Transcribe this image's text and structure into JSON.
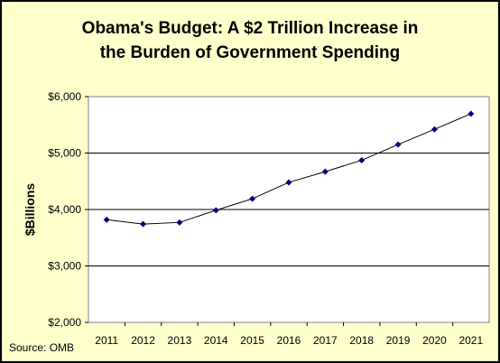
{
  "chart_data": {
    "type": "line",
    "title_lines": [
      "Obama's Budget: A $2 Trillion Increase in",
      "the Burden of Government Spending"
    ],
    "ylabel": "$Billions",
    "xlabel": "",
    "source": "Source: OMB",
    "categories": [
      "2011",
      "2012",
      "2013",
      "2014",
      "2015",
      "2016",
      "2017",
      "2018",
      "2019",
      "2020",
      "2021"
    ],
    "series": [
      {
        "values": [
          3819,
          3743,
          3771,
          3986,
          4191,
          4481,
          4670,
          4873,
          5151,
          5421,
          5697
        ]
      }
    ],
    "ylim": [
      2000,
      6000
    ],
    "yticks": [
      2000,
      3000,
      4000,
      5000,
      6000
    ],
    "ytick_labels": [
      "$2,000",
      "$3,000",
      "$4,000",
      "$5,000",
      "$6,000"
    ],
    "grid": true,
    "colors": {
      "background": "#ffffcc",
      "plot_area": "#ffffff",
      "line": "#000000",
      "marker": "#000080"
    }
  }
}
